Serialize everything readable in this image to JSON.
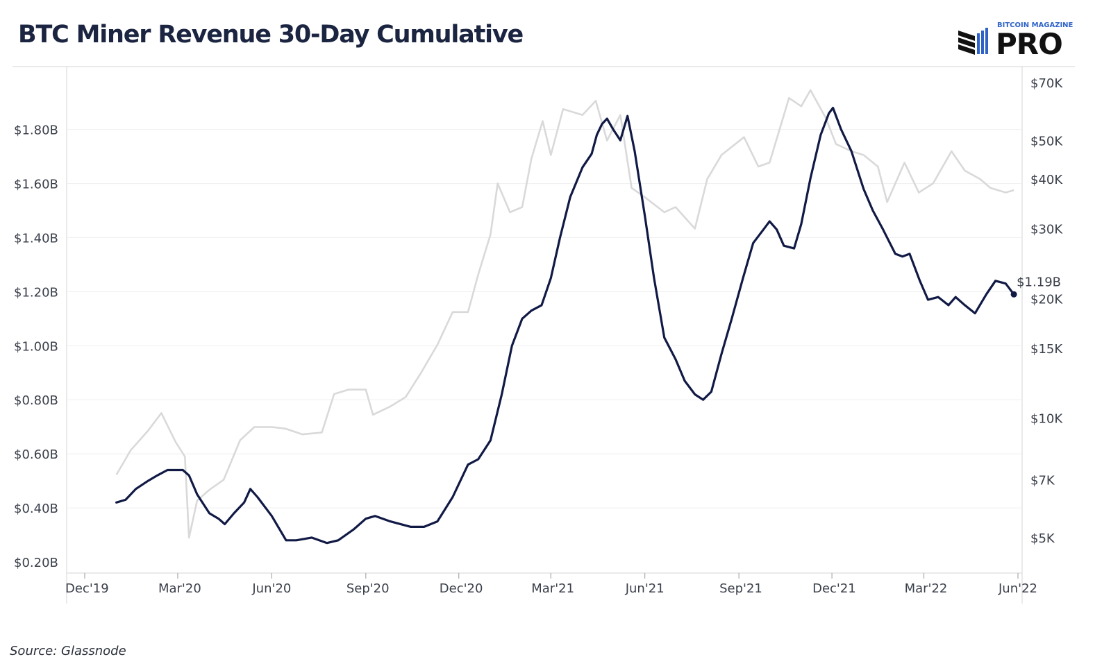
{
  "title": "BTC Miner Revenue 30-Day Cumulative",
  "source": "Source: Glassnode",
  "logo": {
    "top_text": "BITCOIN MAGAZINE",
    "main_text": "PRO"
  },
  "colors": {
    "revenue": "#111a45",
    "price": "#d9d9d9",
    "title": "#1b2440",
    "logo_blue": "#2f63c8"
  },
  "chart_data": {
    "type": "line",
    "x_ticks": [
      "Dec'19",
      "Mar'20",
      "Jun'20",
      "Sep'20",
      "Dec'20",
      "Mar'21",
      "Jun'21",
      "Sep'21",
      "Dec'21",
      "Mar'22",
      "Jun'22"
    ],
    "y_left_ticks": [
      "$0.20B",
      "$0.40B",
      "$0.60B",
      "$0.80B",
      "$1.00B",
      "$1.20B",
      "$1.40B",
      "$1.60B",
      "$1.80B"
    ],
    "y_left_range": [
      0.2,
      1.93
    ],
    "y_right_ticks": [
      "$5K",
      "$7K",
      "$10K",
      "$15K",
      "$20K",
      "$30K",
      "$40K",
      "$50K",
      "$70K"
    ],
    "y_right_values": [
      5000,
      7000,
      10000,
      15000,
      20000,
      30000,
      40000,
      50000,
      70000
    ],
    "y_right_scale": "log",
    "end_label": "$1.19B",
    "series": [
      {
        "name": "",
        "axis": "left",
        "points": [
          [
            "2020-01-01",
            0.42
          ],
          [
            "2020-01-10",
            0.43
          ],
          [
            "2020-01-20",
            0.47
          ],
          [
            "2020-02-01",
            0.5
          ],
          [
            "2020-02-10",
            0.52
          ],
          [
            "2020-02-20",
            0.54
          ],
          [
            "2020-03-01",
            0.54
          ],
          [
            "2020-03-06",
            0.54
          ],
          [
            "2020-03-12",
            0.52
          ],
          [
            "2020-03-20",
            0.45
          ],
          [
            "2020-04-01",
            0.38
          ],
          [
            "2020-04-10",
            0.36
          ],
          [
            "2020-04-16",
            0.34
          ],
          [
            "2020-04-25",
            0.38
          ],
          [
            "2020-05-05",
            0.42
          ],
          [
            "2020-05-11",
            0.47
          ],
          [
            "2020-05-18",
            0.44
          ],
          [
            "2020-06-01",
            0.37
          ],
          [
            "2020-06-15",
            0.28
          ],
          [
            "2020-06-25",
            0.28
          ],
          [
            "2020-07-10",
            0.29
          ],
          [
            "2020-07-25",
            0.27
          ],
          [
            "2020-08-05",
            0.28
          ],
          [
            "2020-08-20",
            0.32
          ],
          [
            "2020-09-01",
            0.36
          ],
          [
            "2020-09-10",
            0.37
          ],
          [
            "2020-09-25",
            0.35
          ],
          [
            "2020-10-15",
            0.33
          ],
          [
            "2020-10-28",
            0.33
          ],
          [
            "2020-11-10",
            0.35
          ],
          [
            "2020-11-25",
            0.44
          ],
          [
            "2020-12-10",
            0.56
          ],
          [
            "2020-12-20",
            0.58
          ],
          [
            "2021-01-01",
            0.65
          ],
          [
            "2021-01-12",
            0.82
          ],
          [
            "2021-01-22",
            1.0
          ],
          [
            "2021-02-01",
            1.1
          ],
          [
            "2021-02-10",
            1.13
          ],
          [
            "2021-02-20",
            1.15
          ],
          [
            "2021-03-01",
            1.25
          ],
          [
            "2021-03-10",
            1.4
          ],
          [
            "2021-03-20",
            1.55
          ],
          [
            "2021-04-01",
            1.66
          ],
          [
            "2021-04-10",
            1.71
          ],
          [
            "2021-04-15",
            1.78
          ],
          [
            "2021-04-20",
            1.82
          ],
          [
            "2021-04-25",
            1.84
          ],
          [
            "2021-05-01",
            1.8
          ],
          [
            "2021-05-08",
            1.76
          ],
          [
            "2021-05-15",
            1.85
          ],
          [
            "2021-05-22",
            1.72
          ],
          [
            "2021-06-01",
            1.48
          ],
          [
            "2021-06-10",
            1.25
          ],
          [
            "2021-06-20",
            1.03
          ],
          [
            "2021-07-01",
            0.95
          ],
          [
            "2021-07-10",
            0.87
          ],
          [
            "2021-07-20",
            0.82
          ],
          [
            "2021-07-28",
            0.8
          ],
          [
            "2021-08-05",
            0.83
          ],
          [
            "2021-08-15",
            0.97
          ],
          [
            "2021-08-25",
            1.1
          ],
          [
            "2021-09-05",
            1.25
          ],
          [
            "2021-09-15",
            1.38
          ],
          [
            "2021-09-25",
            1.43
          ],
          [
            "2021-10-01",
            1.46
          ],
          [
            "2021-10-08",
            1.43
          ],
          [
            "2021-10-15",
            1.37
          ],
          [
            "2021-10-25",
            1.36
          ],
          [
            "2021-11-01",
            1.45
          ],
          [
            "2021-11-10",
            1.62
          ],
          [
            "2021-11-20",
            1.78
          ],
          [
            "2021-11-28",
            1.86
          ],
          [
            "2021-12-02",
            1.88
          ],
          [
            "2021-12-10",
            1.8
          ],
          [
            "2021-12-20",
            1.72
          ],
          [
            "2022-01-01",
            1.58
          ],
          [
            "2022-01-10",
            1.5
          ],
          [
            "2022-01-20",
            1.43
          ],
          [
            "2022-02-01",
            1.34
          ],
          [
            "2022-02-08",
            1.33
          ],
          [
            "2022-02-15",
            1.34
          ],
          [
            "2022-02-25",
            1.24
          ],
          [
            "2022-03-05",
            1.17
          ],
          [
            "2022-03-15",
            1.18
          ],
          [
            "2022-03-25",
            1.15
          ],
          [
            "2022-04-01",
            1.18
          ],
          [
            "2022-04-10",
            1.15
          ],
          [
            "2022-04-20",
            1.12
          ],
          [
            "2022-05-01",
            1.19
          ],
          [
            "2022-05-10",
            1.24
          ],
          [
            "2022-05-20",
            1.23
          ],
          [
            "2022-05-28",
            1.19
          ]
        ]
      },
      {
        "name": "",
        "axis": "right",
        "points": [
          [
            "2020-01-01",
            7200
          ],
          [
            "2020-01-15",
            8300
          ],
          [
            "2020-02-01",
            9300
          ],
          [
            "2020-02-14",
            10300
          ],
          [
            "2020-02-28",
            8700
          ],
          [
            "2020-03-08",
            8000
          ],
          [
            "2020-03-12",
            5000
          ],
          [
            "2020-03-20",
            6200
          ],
          [
            "2020-04-01",
            6600
          ],
          [
            "2020-04-15",
            7000
          ],
          [
            "2020-05-01",
            8800
          ],
          [
            "2020-05-15",
            9500
          ],
          [
            "2020-06-01",
            9500
          ],
          [
            "2020-06-15",
            9400
          ],
          [
            "2020-07-01",
            9100
          ],
          [
            "2020-07-20",
            9200
          ],
          [
            "2020-08-01",
            11500
          ],
          [
            "2020-08-15",
            11800
          ],
          [
            "2020-09-01",
            11800
          ],
          [
            "2020-09-08",
            10200
          ],
          [
            "2020-09-25",
            10700
          ],
          [
            "2020-10-10",
            11300
          ],
          [
            "2020-10-25",
            13000
          ],
          [
            "2020-11-10",
            15300
          ],
          [
            "2020-11-25",
            18500
          ],
          [
            "2020-12-10",
            18500
          ],
          [
            "2020-12-20",
            23000
          ],
          [
            "2021-01-01",
            29000
          ],
          [
            "2021-01-08",
            39000
          ],
          [
            "2021-01-20",
            33000
          ],
          [
            "2021-02-01",
            34000
          ],
          [
            "2021-02-10",
            45000
          ],
          [
            "2021-02-21",
            56000
          ],
          [
            "2021-03-01",
            46000
          ],
          [
            "2021-03-13",
            60000
          ],
          [
            "2021-04-01",
            58000
          ],
          [
            "2021-04-14",
            63000
          ],
          [
            "2021-04-25",
            50000
          ],
          [
            "2021-05-08",
            58000
          ],
          [
            "2021-05-19",
            38000
          ],
          [
            "2021-06-01",
            36000
          ],
          [
            "2021-06-20",
            33000
          ],
          [
            "2021-07-01",
            34000
          ],
          [
            "2021-07-20",
            30000
          ],
          [
            "2021-08-01",
            40000
          ],
          [
            "2021-08-15",
            46000
          ],
          [
            "2021-09-06",
            51000
          ],
          [
            "2021-09-20",
            43000
          ],
          [
            "2021-10-01",
            44000
          ],
          [
            "2021-10-20",
            64000
          ],
          [
            "2021-11-01",
            61000
          ],
          [
            "2021-11-10",
            67000
          ],
          [
            "2021-11-25",
            57000
          ],
          [
            "2021-12-05",
            49000
          ],
          [
            "2021-12-20",
            47000
          ],
          [
            "2022-01-01",
            46000
          ],
          [
            "2022-01-15",
            43000
          ],
          [
            "2022-01-24",
            35000
          ],
          [
            "2022-02-10",
            44000
          ],
          [
            "2022-02-24",
            37000
          ],
          [
            "2022-03-10",
            39000
          ],
          [
            "2022-03-28",
            47000
          ],
          [
            "2022-04-10",
            42000
          ],
          [
            "2022-04-25",
            40000
          ],
          [
            "2022-05-05",
            38000
          ],
          [
            "2022-05-20",
            37000
          ],
          [
            "2022-05-28",
            37500
          ]
        ]
      }
    ]
  }
}
